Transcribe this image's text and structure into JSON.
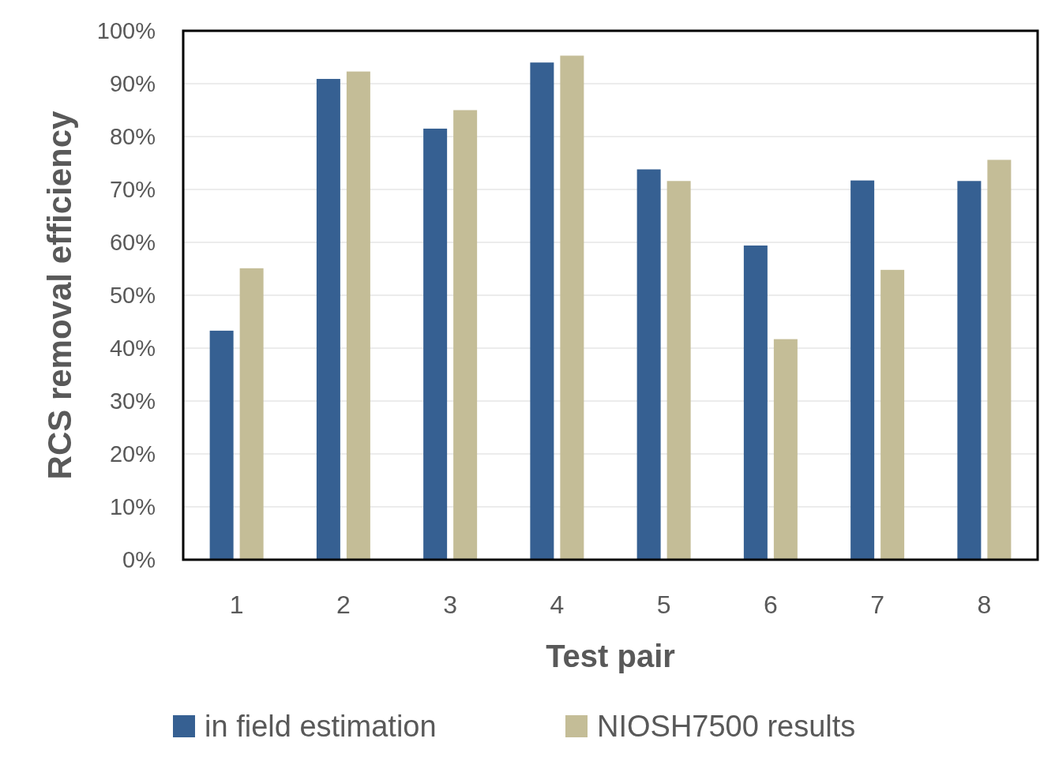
{
  "chart_data": {
    "type": "bar",
    "xlabel": "Test pair",
    "ylabel": "RCS removal efficiency",
    "categories": [
      "1",
      "2",
      "3",
      "4",
      "5",
      "6",
      "7",
      "8"
    ],
    "series": [
      {
        "name": "in field estimation",
        "color": "#366092",
        "values": [
          43.3,
          90.9,
          81.5,
          94.0,
          73.8,
          59.4,
          71.7,
          71.6
        ]
      },
      {
        "name": "NIOSH7500 results",
        "color": "#c4bd97",
        "values": [
          55.1,
          92.3,
          85.0,
          95.3,
          71.6,
          41.7,
          54.8,
          75.6
        ]
      }
    ],
    "ylim": [
      0,
      100
    ],
    "yticks": [
      {
        "value": 0,
        "label": "0%"
      },
      {
        "value": 10,
        "label": "10%"
      },
      {
        "value": 20,
        "label": "20%"
      },
      {
        "value": 30,
        "label": "30%"
      },
      {
        "value": 40,
        "label": "40%"
      },
      {
        "value": 50,
        "label": "50%"
      },
      {
        "value": 60,
        "label": "60%"
      },
      {
        "value": 70,
        "label": "70%"
      },
      {
        "value": 80,
        "label": "80%"
      },
      {
        "value": 90,
        "label": "90%"
      },
      {
        "value": 100,
        "label": "100%"
      }
    ],
    "grid": "y",
    "legend": "bottom"
  }
}
